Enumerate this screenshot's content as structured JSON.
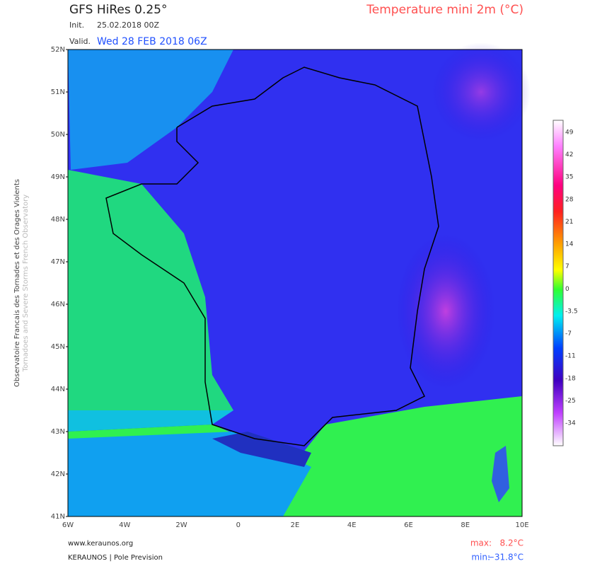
{
  "header": {
    "model": "GFS HiRes 0.25°",
    "parameter": "Temperature mini 2m (°C)",
    "init_label": "Init.",
    "init": "25.02.2018 00Z",
    "valid_label": "Valid.",
    "valid": "Wed 28 FEB 2018 06Z"
  },
  "map": {
    "lat_labels": [
      "52N",
      "51N",
      "50N",
      "49N",
      "48N",
      "47N",
      "46N",
      "45N",
      "44N",
      "43N",
      "42N",
      "41N"
    ],
    "lon_labels": [
      "6W",
      "4W",
      "2W",
      "0",
      "2E",
      "4E",
      "6E",
      "8E",
      "10E"
    ]
  },
  "colorbar": {
    "labels": [
      "49",
      "42",
      "35",
      "28",
      "21",
      "14",
      "7",
      "0",
      "-3.5",
      "-7",
      "-11",
      "-18",
      "-25",
      "-34"
    ]
  },
  "side": {
    "line1": "Observatoire Francais des Tornades et des Orages Violents",
    "line2": "Tornadoes and Severe Storms French Observatory"
  },
  "footer": {
    "url": "www.keraunos.org",
    "credit": "KERAUNOS | Pole Prevision",
    "max_label": "max:",
    "max": "8.2°C",
    "min_label": "min:",
    "min": "−31.8°C"
  }
}
